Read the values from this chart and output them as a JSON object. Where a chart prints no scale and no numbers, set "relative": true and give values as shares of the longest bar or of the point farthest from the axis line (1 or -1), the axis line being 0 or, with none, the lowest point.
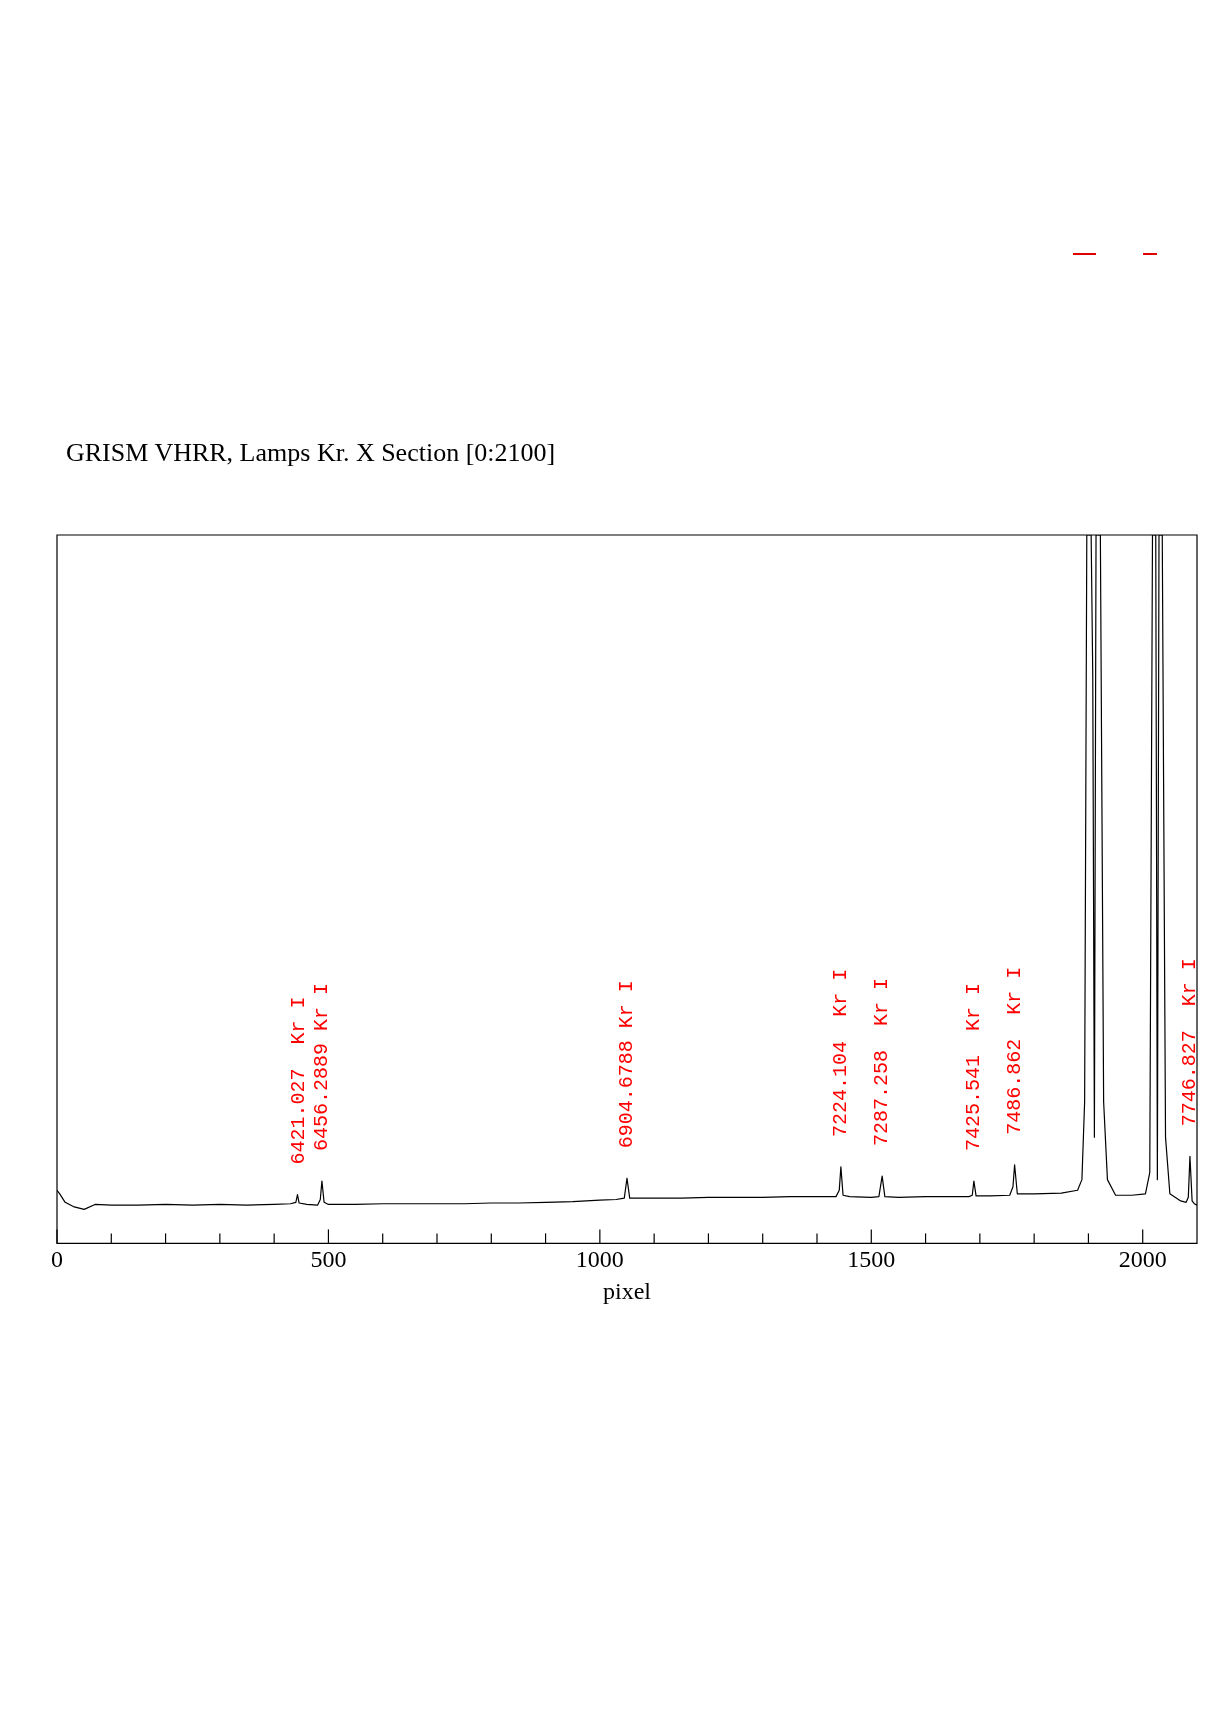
{
  "chart_data": {
    "type": "line",
    "title": "GRISM VHRR, Lamps Kr. X Section [0:2100]",
    "xlabel": "pixel",
    "relative": true,
    "legend": false,
    "grid": false,
    "tick_labels": "x",
    "marker": "none",
    "line_style": "solid",
    "xlim": [
      0,
      2100
    ],
    "xticks": [
      0,
      {
        "value": 100,
        "label": null
      },
      {
        "value": 200,
        "label": null
      },
      {
        "value": 300,
        "label": null
      },
      {
        "value": 400,
        "label": null
      },
      500,
      {
        "value": 600,
        "label": null
      },
      {
        "value": 700,
        "label": null
      },
      {
        "value": 800,
        "label": null
      },
      {
        "value": 900,
        "label": null
      },
      1000,
      {
        "value": 1100,
        "label": null
      },
      {
        "value": 1200,
        "label": null
      },
      {
        "value": 1300,
        "label": null
      },
      {
        "value": 1400,
        "label": null
      },
      1500,
      {
        "value": 1600,
        "label": null
      },
      {
        "value": 1700,
        "label": null
      },
      {
        "value": 1800,
        "label": null
      },
      {
        "value": 1900,
        "label": null
      },
      2000
    ],
    "series": [
      {
        "color": "#000000",
        "x": [
          0,
          5,
          15,
          30,
          50,
          70,
          100,
          150,
          200,
          250,
          300,
          350,
          400,
          430,
          440,
          443,
          446,
          460,
          480,
          485,
          488,
          492,
          500,
          550,
          600,
          650,
          700,
          750,
          800,
          850,
          900,
          950,
          1000,
          1030,
          1045,
          1050,
          1055,
          1080,
          1100,
          1150,
          1200,
          1250,
          1300,
          1350,
          1400,
          1435,
          1441,
          1444,
          1448,
          1460,
          1500,
          1514,
          1520,
          1525,
          1550,
          1600,
          1650,
          1680,
          1686,
          1689,
          1693,
          1720,
          1755,
          1761,
          1764,
          1769,
          1800,
          1850,
          1880,
          1888,
          1893,
          1897,
          1905,
          1908,
          1911,
          1914,
          1922,
          1928,
          1935,
          1950,
          1980,
          2005,
          2013,
          2018,
          2024,
          2027,
          2030,
          2036,
          2042,
          2050,
          2070,
          2080,
          2084,
          2087,
          2091,
          2095,
          2100
        ],
        "values": [
          0.075,
          0.07,
          0.058,
          0.052,
          0.048,
          0.055,
          0.054,
          0.054,
          0.055,
          0.054,
          0.055,
          0.054,
          0.055,
          0.056,
          0.058,
          0.069,
          0.057,
          0.055,
          0.054,
          0.062,
          0.088,
          0.058,
          0.055,
          0.055,
          0.056,
          0.056,
          0.056,
          0.056,
          0.057,
          0.057,
          0.058,
          0.059,
          0.061,
          0.062,
          0.064,
          0.092,
          0.064,
          0.064,
          0.064,
          0.064,
          0.065,
          0.065,
          0.065,
          0.066,
          0.066,
          0.066,
          0.075,
          0.108,
          0.068,
          0.066,
          0.065,
          0.066,
          0.095,
          0.066,
          0.065,
          0.066,
          0.066,
          0.066,
          0.068,
          0.088,
          0.067,
          0.067,
          0.068,
          0.08,
          0.111,
          0.07,
          0.07,
          0.071,
          0.075,
          0.09,
          0.2,
          1,
          1,
          0.8,
          0.15,
          1,
          1,
          0.2,
          0.09,
          0.068,
          0.068,
          0.07,
          0.1,
          1,
          1,
          0.09,
          1,
          1,
          0.15,
          0.07,
          0.06,
          0.058,
          0.065,
          0.123,
          0.06,
          0.056,
          0.054
        ]
      }
    ],
    "annotations": [
      {
        "text": "6421.027  Kr I",
        "x": 446,
        "y": 0.069
      },
      {
        "text": "6456.2889 Kr I",
        "x": 488,
        "y": 0.088
      },
      {
        "text": "6904.6788 Kr I",
        "x": 1050,
        "y": 0.092
      },
      {
        "text": "7224.104  Kr I",
        "x": 1444,
        "y": 0.108
      },
      {
        "text": "7287.258  Kr I",
        "x": 1520,
        "y": 0.095
      },
      {
        "text": "7425.541  Kr I",
        "x": 1689,
        "y": 0.088
      },
      {
        "text": "7486.862  Kr I",
        "x": 1764,
        "y": 0.111
      },
      {
        "text": "7746.827  Kr I",
        "x": 2087,
        "y": 0.123
      }
    ]
  }
}
